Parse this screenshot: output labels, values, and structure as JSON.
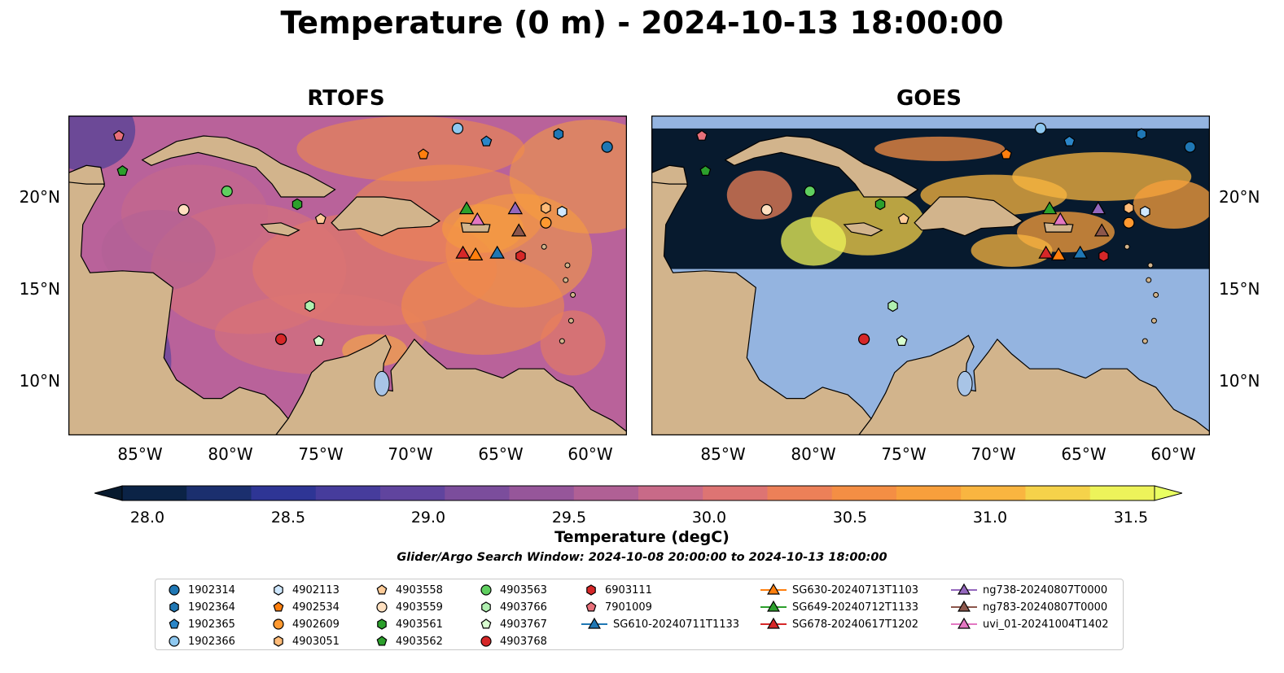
{
  "title": "Temperature (0 m) - 2024-10-13 18:00:00",
  "panels": [
    {
      "title": "RTOFS"
    },
    {
      "title": "GOES"
    }
  ],
  "lat_labels": [
    "20°N",
    "15°N",
    "10°N"
  ],
  "lon_labels": [
    "85°W",
    "80°W",
    "75°W",
    "70°W",
    "65°W",
    "60°W"
  ],
  "colorbar": {
    "label": "Temperature (degC)",
    "ticks": [
      "28.0",
      "28.5",
      "29.0",
      "29.5",
      "30.0",
      "30.5",
      "31.0",
      "31.5"
    ],
    "colors": [
      "#0b2346",
      "#1b2f6e",
      "#2e3595",
      "#463c9c",
      "#60449e",
      "#7b4d9c",
      "#96569a",
      "#b06095",
      "#c86a88",
      "#dd7473",
      "#ec8058",
      "#f48e44",
      "#f89f3c",
      "#f9b540",
      "#f5d24a",
      "#edf35a"
    ],
    "under_color": "#071a2e",
    "over_color": "#e9ff62"
  },
  "search_window": "Glider/Argo Search Window: 2024-10-08 20:00:00 to 2024-10-13 18:00:00",
  "map": {
    "land_color": "#d2b48c",
    "nodata_color": "#94b4e0",
    "ocean_base_color": "#b9629a"
  },
  "legend": {
    "items": [
      {
        "label": "1902314",
        "marker": "circle",
        "color": "#1f77b4"
      },
      {
        "label": "1902364",
        "marker": "hexagon",
        "color": "#1f77b4"
      },
      {
        "label": "1902365",
        "marker": "pentagon",
        "color": "#2b86c8"
      },
      {
        "label": "1902366",
        "marker": "circle",
        "color": "#8ec8f0"
      },
      {
        "label": "4902113",
        "marker": "hexagon",
        "color": "#cfe8ff"
      },
      {
        "label": "4902534",
        "marker": "pentagon",
        "color": "#ff7f0e"
      },
      {
        "label": "4902609",
        "marker": "circle",
        "color": "#ff9930"
      },
      {
        "label": "4903051",
        "marker": "hexagon",
        "color": "#ffbb78"
      },
      {
        "label": "4903558",
        "marker": "pentagon",
        "color": "#ffcc99"
      },
      {
        "label": "4903559",
        "marker": "circle",
        "color": "#ffe0c0"
      },
      {
        "label": "4903561",
        "marker": "hexagon",
        "color": "#2ca02c"
      },
      {
        "label": "4903562",
        "marker": "pentagon",
        "color": "#2ca02c"
      },
      {
        "label": "4903563",
        "marker": "circle",
        "color": "#5fcf5f"
      },
      {
        "label": "4903766",
        "marker": "hexagon",
        "color": "#b0f0b0"
      },
      {
        "label": "4903767",
        "marker": "pentagon",
        "color": "#d8ffd0"
      },
      {
        "label": "4903768",
        "marker": "circle",
        "color": "#d62728"
      },
      {
        "label": "6903111",
        "marker": "hexagon",
        "color": "#d62728"
      },
      {
        "label": "7901009",
        "marker": "pentagon",
        "color": "#e8707a"
      },
      {
        "label": "SG610-20240711T1133",
        "marker": "triangle-line",
        "color": "#1f77b4"
      },
      {
        "label": "SG630-20240713T1103",
        "marker": "triangle-line",
        "color": "#ff7f0e"
      },
      {
        "label": "SG649-20240712T1133",
        "marker": "triangle-line",
        "color": "#2ca02c"
      },
      {
        "label": "SG678-20240617T1202",
        "marker": "triangle-line",
        "color": "#d62728"
      },
      {
        "label": "ng738-20240807T0000",
        "marker": "triangle-line",
        "color": "#9467bd"
      },
      {
        "label": "ng783-20240807T0000",
        "marker": "triangle-line",
        "color": "#8c564b"
      },
      {
        "label": "uvi_01-20241004T1402",
        "marker": "triangle-line",
        "color": "#e377c2"
      }
    ]
  },
  "platforms": [
    {
      "id": "1902314",
      "lon": -59.1,
      "lat": 22.6
    },
    {
      "id": "1902364",
      "lon": -61.8,
      "lat": 23.3
    },
    {
      "id": "1902365",
      "lon": -65.8,
      "lat": 22.9
    },
    {
      "id": "1902366",
      "lon": -67.4,
      "lat": 23.6
    },
    {
      "id": "4902113",
      "lon": -61.6,
      "lat": 19.1
    },
    {
      "id": "4902534",
      "lon": -69.3,
      "lat": 22.2
    },
    {
      "id": "4902609",
      "lon": -62.5,
      "lat": 18.5
    },
    {
      "id": "4903051",
      "lon": -62.5,
      "lat": 19.3
    },
    {
      "id": "4903558",
      "lon": -75.0,
      "lat": 18.7
    },
    {
      "id": "4903559",
      "lon": -82.6,
      "lat": 19.2
    },
    {
      "id": "4903561",
      "lon": -76.3,
      "lat": 19.5
    },
    {
      "id": "4903562",
      "lon": -86.0,
      "lat": 21.3
    },
    {
      "id": "4903563",
      "lon": -80.2,
      "lat": 20.2
    },
    {
      "id": "4903766",
      "lon": -75.6,
      "lat": 14.0
    },
    {
      "id": "4903767",
      "lon": -75.1,
      "lat": 12.1
    },
    {
      "id": "4903768",
      "lon": -77.2,
      "lat": 12.2
    },
    {
      "id": "6903111",
      "lon": -63.9,
      "lat": 16.7
    },
    {
      "id": "7901009",
      "lon": -86.2,
      "lat": 23.2
    },
    {
      "id": "SG610-20240711T1133",
      "lon": -65.2,
      "lat": 16.8
    },
    {
      "id": "SG630-20240713T1103",
      "lon": -66.4,
      "lat": 16.7
    },
    {
      "id": "SG649-20240712T1133",
      "lon": -66.9,
      "lat": 19.2
    },
    {
      "id": "SG678-20240617T1202",
      "lon": -67.1,
      "lat": 16.8
    },
    {
      "id": "ng738-20240807T0000",
      "lon": -64.2,
      "lat": 19.2
    },
    {
      "id": "ng783-20240807T0000",
      "lon": -64.0,
      "lat": 18.0
    },
    {
      "id": "uvi_01-20241004T1402",
      "lon": -66.3,
      "lat": 18.6
    }
  ]
}
